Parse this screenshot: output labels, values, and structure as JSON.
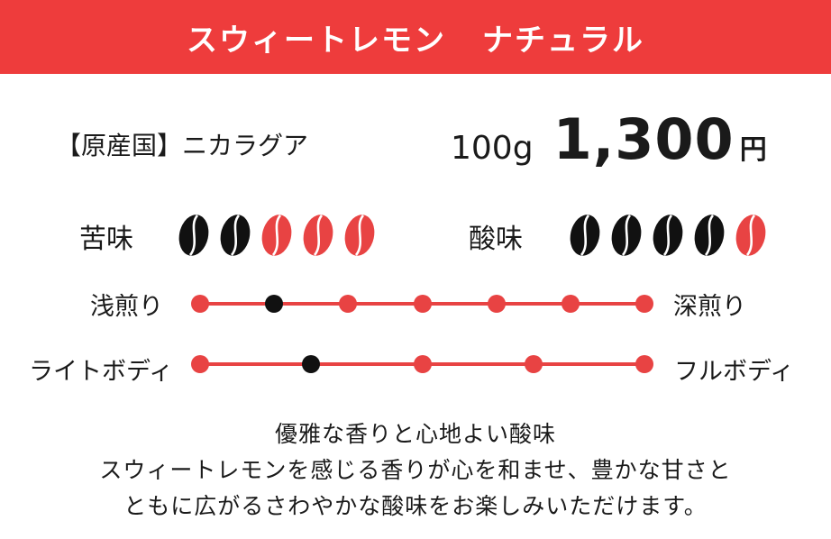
{
  "header": {
    "name": "スウィートレモン",
    "process": "ナチュラル",
    "color": "#ee3c3c"
  },
  "origin": {
    "label": "【原産国】",
    "value": "ニカラグア"
  },
  "price": {
    "weight": "100g",
    "amount": "1,300",
    "unit": "円"
  },
  "ratings": [
    {
      "label": "苦味",
      "max": 5,
      "value": 2,
      "filled_color": "#111111",
      "empty_color": "#e84343"
    },
    {
      "label": "酸味",
      "max": 5,
      "value": 4,
      "filled_color": "#111111",
      "empty_color": "#e84343"
    }
  ],
  "scales": [
    {
      "left_label": "浅煎り",
      "right_label": "深煎り",
      "steps": 7,
      "selected_index": 1
    },
    {
      "left_label": "ライトボディ",
      "right_label": "フルボディ",
      "steps": 5,
      "selected_index": 1
    }
  ],
  "description": {
    "title": "優雅な香りと心地よい酸味",
    "lines": [
      "スウィートレモンを感じる香りが心を和ませ、豊かな甘さと",
      "ともに広がるさわやかな酸味をお楽しみいただけます。"
    ]
  }
}
